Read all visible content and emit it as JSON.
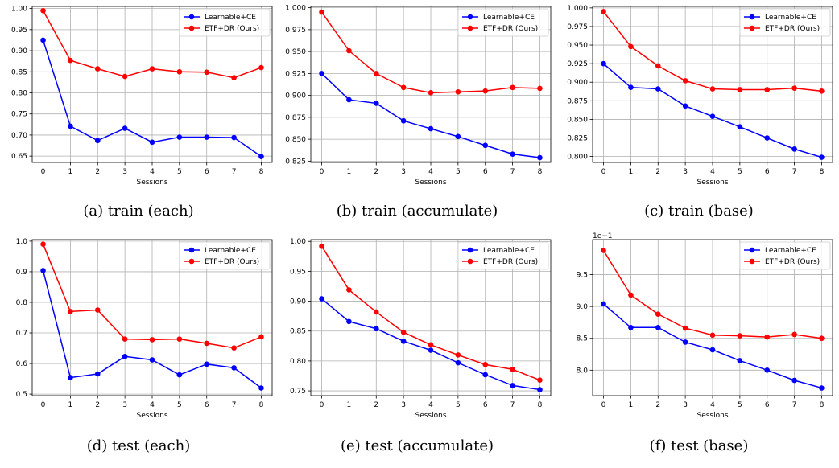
{
  "chart_data": [
    {
      "type": "line",
      "caption": "(a) train (each)",
      "xlabel": "Sessions",
      "ylabel": "",
      "x": [
        0,
        1,
        2,
        3,
        4,
        5,
        6,
        7,
        8
      ],
      "ylim": [
        0.635,
        1.005
      ],
      "yticks": [
        0.65,
        0.7,
        0.75,
        0.8,
        0.85,
        0.9,
        0.95,
        1.0
      ],
      "ytick_labels": [
        "0.65",
        "0.70",
        "0.75",
        "0.80",
        "0.85",
        "0.90",
        "0.95",
        "1.00"
      ],
      "offset_label": "",
      "grid": true,
      "legend": "top-right",
      "series": [
        {
          "name": "Learnable+CE",
          "color": "#0000ff",
          "values": [
            0.925,
            0.721,
            0.687,
            0.716,
            0.683,
            0.695,
            0.695,
            0.694,
            0.649
          ]
        },
        {
          "name": "ETF+DR (Ours)",
          "color": "#ff0000",
          "values": [
            0.995,
            0.877,
            0.857,
            0.839,
            0.857,
            0.85,
            0.849,
            0.836,
            0.86
          ]
        }
      ]
    },
    {
      "type": "line",
      "caption": "(b) train (accumulate)",
      "xlabel": "Sessions",
      "ylabel": "",
      "x": [
        0,
        1,
        2,
        3,
        4,
        5,
        6,
        7,
        8
      ],
      "ylim": [
        0.8235,
        1.0015
      ],
      "yticks": [
        0.825,
        0.85,
        0.875,
        0.9,
        0.925,
        0.95,
        0.975,
        1.0
      ],
      "ytick_labels": [
        "0.825",
        "0.850",
        "0.875",
        "0.900",
        "0.925",
        "0.950",
        "0.975",
        "1.000"
      ],
      "offset_label": "",
      "grid": true,
      "legend": "top-right",
      "series": [
        {
          "name": "Learnable+CE",
          "color": "#0000ff",
          "values": [
            0.925,
            0.895,
            0.891,
            0.871,
            0.862,
            0.853,
            0.843,
            0.833,
            0.829
          ]
        },
        {
          "name": "ETF+DR (Ours)",
          "color": "#ff0000",
          "values": [
            0.995,
            0.951,
            0.925,
            0.909,
            0.903,
            0.904,
            0.905,
            0.909,
            0.908
          ]
        }
      ]
    },
    {
      "type": "line",
      "caption": "(c) train (base)",
      "xlabel": "Sessions",
      "ylabel": "",
      "x": [
        0,
        1,
        2,
        3,
        4,
        5,
        6,
        7,
        8
      ],
      "ylim": [
        0.792,
        1.002
      ],
      "yticks": [
        0.8,
        0.825,
        0.85,
        0.875,
        0.9,
        0.925,
        0.95,
        0.975,
        1.0
      ],
      "ytick_labels": [
        "0.800",
        "0.825",
        "0.850",
        "0.875",
        "0.900",
        "0.925",
        "0.950",
        "0.975",
        "1.000"
      ],
      "offset_label": "",
      "grid": true,
      "legend": "top-right",
      "series": [
        {
          "name": "Learnable+CE",
          "color": "#0000ff",
          "values": [
            0.925,
            0.893,
            0.891,
            0.868,
            0.854,
            0.84,
            0.825,
            0.81,
            0.799
          ]
        },
        {
          "name": "ETF+DR (Ours)",
          "color": "#ff0000",
          "values": [
            0.995,
            0.948,
            0.922,
            0.902,
            0.891,
            0.89,
            0.89,
            0.892,
            0.888
          ]
        }
      ]
    },
    {
      "type": "line",
      "caption": "(d) test (each)",
      "xlabel": "Sessions",
      "ylabel": "",
      "x": [
        0,
        1,
        2,
        3,
        4,
        5,
        6,
        7,
        8
      ],
      "ylim": [
        0.495,
        1.005
      ],
      "yticks": [
        0.5,
        0.6,
        0.7,
        0.8,
        0.9,
        1.0
      ],
      "ytick_labels": [
        "0.5",
        "0.6",
        "0.7",
        "0.8",
        "0.9",
        "1.0"
      ],
      "offset_label": "",
      "grid": true,
      "legend": "top-right",
      "series": [
        {
          "name": "Learnable+CE",
          "color": "#0000ff",
          "values": [
            0.904,
            0.554,
            0.566,
            0.623,
            0.612,
            0.563,
            0.598,
            0.586,
            0.52
          ]
        },
        {
          "name": "ETF+DR (Ours)",
          "color": "#ff0000",
          "values": [
            0.99,
            0.77,
            0.775,
            0.68,
            0.678,
            0.68,
            0.666,
            0.651,
            0.687
          ]
        }
      ]
    },
    {
      "type": "line",
      "caption": "(e) test (accumulate)",
      "xlabel": "Sessions",
      "ylabel": "",
      "x": [
        0,
        1,
        2,
        3,
        4,
        5,
        6,
        7,
        8
      ],
      "ylim": [
        0.742,
        1.003
      ],
      "yticks": [
        0.75,
        0.8,
        0.85,
        0.9,
        0.95,
        1.0
      ],
      "ytick_labels": [
        "0.75",
        "0.80",
        "0.85",
        "0.90",
        "0.95",
        "1.00"
      ],
      "offset_label": "",
      "grid": true,
      "legend": "top-right",
      "series": [
        {
          "name": "Learnable+CE",
          "color": "#0000ff",
          "values": [
            0.904,
            0.866,
            0.854,
            0.833,
            0.818,
            0.797,
            0.777,
            0.759,
            0.752
          ]
        },
        {
          "name": "ETF+DR (Ours)",
          "color": "#ff0000",
          "values": [
            0.992,
            0.919,
            0.882,
            0.848,
            0.827,
            0.81,
            0.794,
            0.786,
            0.768
          ]
        }
      ]
    },
    {
      "type": "line",
      "caption": "(f) test (base)",
      "xlabel": "Sessions",
      "ylabel": "",
      "x": [
        0,
        1,
        2,
        3,
        4,
        5,
        6,
        7,
        8
      ],
      "ylim": [
        7.6,
        10.05
      ],
      "yticks": [
        8.0,
        8.5,
        9.0,
        9.5
      ],
      "ytick_labels": [
        "8.0",
        "8.5",
        "9.0",
        "9.5"
      ],
      "offset_label": "1e−1",
      "grid": true,
      "legend": "top-right",
      "series": [
        {
          "name": "Learnable+CE",
          "color": "#0000ff",
          "values": [
            9.04,
            8.67,
            8.67,
            8.44,
            8.32,
            8.15,
            8.0,
            7.84,
            7.72
          ]
        },
        {
          "name": "ETF+DR (Ours)",
          "color": "#ff0000",
          "values": [
            9.88,
            9.18,
            8.88,
            8.66,
            8.55,
            8.54,
            8.52,
            8.56,
            8.5
          ]
        }
      ]
    }
  ]
}
